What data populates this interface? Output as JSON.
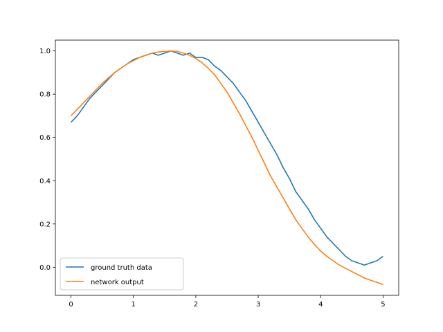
{
  "chart_data": {
    "type": "line",
    "title": "",
    "xlabel": "",
    "ylabel": "",
    "xlim": [
      -0.25,
      5.25
    ],
    "ylim": [
      -0.13,
      1.05
    ],
    "xticks": [
      0,
      1,
      2,
      3,
      4,
      5
    ],
    "xtick_labels": [
      "0",
      "1",
      "2",
      "3",
      "4",
      "5"
    ],
    "yticks": [
      0.0,
      0.2,
      0.4,
      0.6,
      0.8,
      1.0
    ],
    "ytick_labels": [
      "0.0",
      "0.2",
      "0.4",
      "0.6",
      "0.8",
      "1.0"
    ],
    "grid": false,
    "legend_position": "lower-left",
    "series": [
      {
        "name": "ground truth data",
        "color": "#1f77b4",
        "x": [
          0.0,
          0.1,
          0.2,
          0.3,
          0.4,
          0.5,
          0.6,
          0.7,
          0.8,
          0.9,
          1.0,
          1.1,
          1.2,
          1.3,
          1.4,
          1.5,
          1.6,
          1.7,
          1.8,
          1.9,
          2.0,
          2.1,
          2.2,
          2.3,
          2.4,
          2.5,
          2.6,
          2.7,
          2.8,
          2.9,
          3.0,
          3.1,
          3.2,
          3.3,
          3.4,
          3.5,
          3.6,
          3.7,
          3.8,
          3.9,
          4.0,
          4.1,
          4.2,
          4.3,
          4.4,
          4.5,
          4.6,
          4.7,
          4.8,
          4.9,
          5.0
        ],
        "y": [
          0.67,
          0.7,
          0.74,
          0.78,
          0.81,
          0.84,
          0.87,
          0.9,
          0.92,
          0.94,
          0.96,
          0.97,
          0.98,
          0.99,
          0.98,
          0.99,
          1.0,
          0.99,
          0.98,
          0.99,
          0.97,
          0.97,
          0.96,
          0.93,
          0.91,
          0.88,
          0.85,
          0.81,
          0.77,
          0.72,
          0.67,
          0.62,
          0.57,
          0.52,
          0.46,
          0.41,
          0.35,
          0.31,
          0.27,
          0.22,
          0.18,
          0.14,
          0.11,
          0.08,
          0.05,
          0.03,
          0.02,
          0.01,
          0.02,
          0.03,
          0.05
        ]
      },
      {
        "name": "network output",
        "color": "#ff7f0e",
        "x": [
          0.0,
          0.1,
          0.2,
          0.3,
          0.4,
          0.5,
          0.6,
          0.7,
          0.8,
          0.9,
          1.0,
          1.1,
          1.2,
          1.3,
          1.4,
          1.5,
          1.6,
          1.7,
          1.8,
          1.9,
          2.0,
          2.1,
          2.2,
          2.3,
          2.4,
          2.5,
          2.6,
          2.7,
          2.8,
          2.9,
          3.0,
          3.1,
          3.2,
          3.3,
          3.4,
          3.5,
          3.6,
          3.7,
          3.8,
          3.9,
          4.0,
          4.1,
          4.2,
          4.3,
          4.4,
          4.5,
          4.6,
          4.7,
          4.8,
          4.9,
          5.0
        ],
        "y": [
          0.7,
          0.73,
          0.76,
          0.79,
          0.82,
          0.85,
          0.875,
          0.9,
          0.92,
          0.94,
          0.955,
          0.97,
          0.98,
          0.99,
          0.995,
          0.998,
          1.0,
          0.998,
          0.99,
          0.98,
          0.965,
          0.945,
          0.92,
          0.89,
          0.85,
          0.81,
          0.76,
          0.71,
          0.655,
          0.6,
          0.54,
          0.48,
          0.42,
          0.37,
          0.32,
          0.27,
          0.22,
          0.18,
          0.14,
          0.105,
          0.075,
          0.05,
          0.03,
          0.01,
          -0.005,
          -0.02,
          -0.035,
          -0.05,
          -0.06,
          -0.07,
          -0.08
        ]
      }
    ]
  }
}
